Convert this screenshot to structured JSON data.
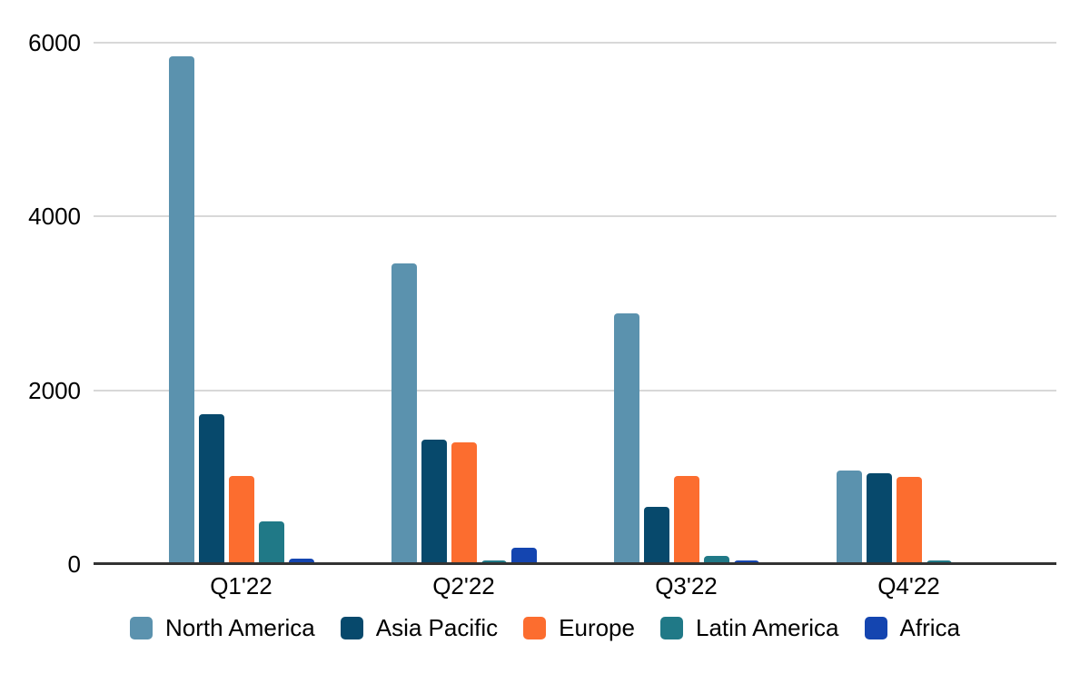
{
  "chart_data": {
    "type": "bar",
    "title": "",
    "categories": [
      "Q1'22",
      "Q2'22",
      "Q3'22",
      "Q4'22"
    ],
    "series": [
      {
        "name": "North America",
        "color": "#5B92AE",
        "values": [
          5840,
          3460,
          2890,
          1075
        ]
      },
      {
        "name": "Asia Pacific",
        "color": "#07496C",
        "values": [
          1720,
          1430,
          660,
          1050
        ]
      },
      {
        "name": "Europe",
        "color": "#FC6D2F",
        "values": [
          1010,
          1400,
          1010,
          1000
        ]
      },
      {
        "name": "Latin America",
        "color": "#207987",
        "values": [
          490,
          40,
          90,
          40
        ]
      },
      {
        "name": "Africa",
        "color": "#1445B0",
        "values": [
          65,
          185,
          40,
          0
        ]
      }
    ],
    "y_axis": {
      "min": 0,
      "max": 6000,
      "ticks": [
        0,
        2000,
        4000,
        6000
      ]
    },
    "xlabel": "",
    "ylabel": "",
    "grid": true,
    "legend_position": "bottom",
    "colors": {
      "background": "#FFFFFF",
      "gridline": "#D8D8D8",
      "axis_line": "#333333",
      "text": "#000000"
    }
  }
}
